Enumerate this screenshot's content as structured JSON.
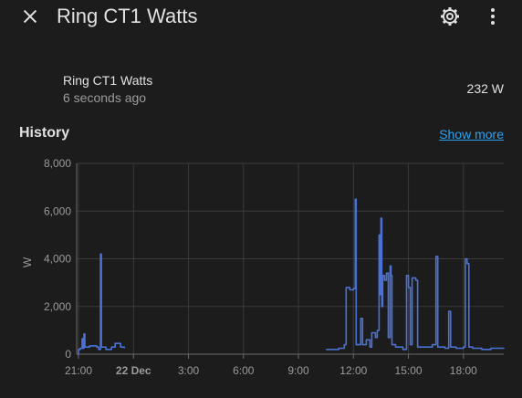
{
  "header": {
    "title": "Ring CT1 Watts",
    "close_icon": "close-icon",
    "settings_icon": "gear-icon",
    "more_icon": "more-vertical-icon"
  },
  "entity": {
    "name": "Ring CT1 Watts",
    "last_changed": "6 seconds ago",
    "state": "232 W"
  },
  "history": {
    "title": "History",
    "show_more": "Show more"
  },
  "colors": {
    "background": "#1c1c1c",
    "line": "#4a72d6",
    "link": "#2aa3f5",
    "grid": "#3a3a3a"
  },
  "chart_data": {
    "type": "line",
    "ylabel": "W",
    "ylim": [
      0,
      8000
    ],
    "yticks": [
      "0",
      "2,000",
      "4,000",
      "6,000",
      "8,000"
    ],
    "xticks": [
      "21:00",
      "22 Dec",
      "3:00",
      "6:00",
      "9:00",
      "12:00",
      "15:00",
      "18:00"
    ],
    "xlim_hours": [
      20.9,
      44.2
    ],
    "grid": true,
    "series": [
      {
        "points": [
          [
            20.95,
            0
          ],
          [
            21.0,
            200
          ],
          [
            21.1,
            250
          ],
          [
            21.2,
            650
          ],
          [
            21.25,
            250
          ],
          [
            21.3,
            850
          ],
          [
            21.35,
            300
          ],
          [
            21.6,
            350
          ],
          [
            22.0,
            300
          ],
          [
            22.1,
            200
          ],
          [
            22.2,
            4200
          ],
          [
            22.25,
            300
          ],
          [
            22.5,
            200
          ],
          [
            22.8,
            300
          ],
          [
            23.0,
            450
          ],
          [
            23.3,
            300
          ],
          [
            23.5,
            250
          ],
          [
            34.5,
            200
          ],
          [
            35.2,
            250
          ],
          [
            35.5,
            400
          ],
          [
            35.6,
            2800
          ],
          [
            35.8,
            2700
          ],
          [
            36.0,
            2750
          ],
          [
            36.1,
            6500
          ],
          [
            36.15,
            400
          ],
          [
            36.4,
            1500
          ],
          [
            36.5,
            400
          ],
          [
            36.7,
            600
          ],
          [
            36.9,
            300
          ],
          [
            37.0,
            900
          ],
          [
            37.2,
            700
          ],
          [
            37.3,
            1000
          ],
          [
            37.4,
            5000
          ],
          [
            37.45,
            2500
          ],
          [
            37.5,
            5700
          ],
          [
            37.55,
            2000
          ],
          [
            37.6,
            3300
          ],
          [
            37.7,
            3100
          ],
          [
            37.8,
            3400
          ],
          [
            37.9,
            700
          ],
          [
            38.0,
            3700
          ],
          [
            38.05,
            3300
          ],
          [
            38.1,
            400
          ],
          [
            38.3,
            300
          ],
          [
            38.7,
            200
          ],
          [
            38.9,
            3300
          ],
          [
            39.0,
            2800
          ],
          [
            39.1,
            400
          ],
          [
            39.2,
            3200
          ],
          [
            39.4,
            3100
          ],
          [
            39.5,
            300
          ],
          [
            40.3,
            400
          ],
          [
            40.5,
            4100
          ],
          [
            40.6,
            300
          ],
          [
            41.0,
            250
          ],
          [
            41.2,
            1800
          ],
          [
            41.3,
            300
          ],
          [
            41.6,
            250
          ],
          [
            42.0,
            300
          ],
          [
            42.1,
            4000
          ],
          [
            42.2,
            3800
          ],
          [
            42.3,
            300
          ],
          [
            42.5,
            250
          ],
          [
            43.0,
            200
          ],
          [
            43.5,
            250
          ],
          [
            44.2,
            230
          ]
        ]
      }
    ]
  }
}
